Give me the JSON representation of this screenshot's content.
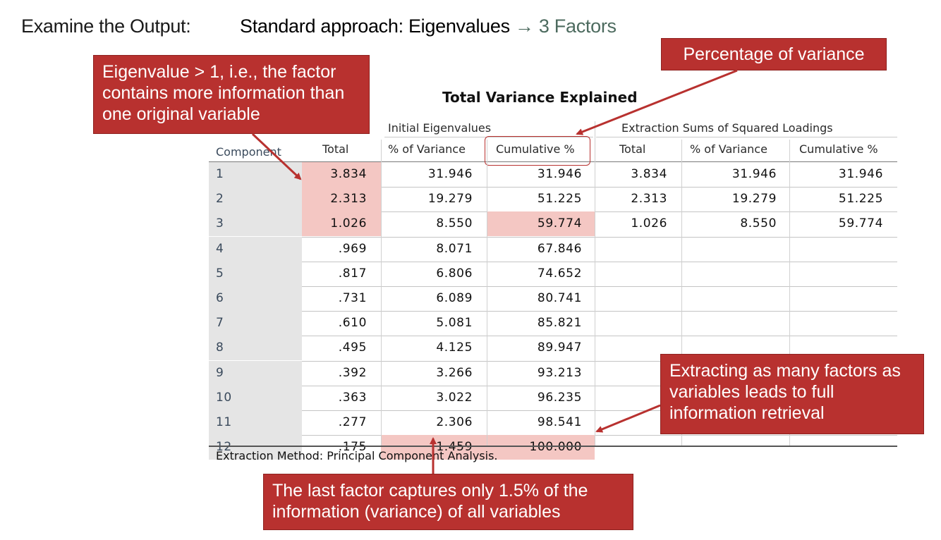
{
  "header": {
    "left_label": "Examine the Output:",
    "main_prefix": "Standard approach: Eigenvalues",
    "arrow": "→",
    "main_accent": "3 Factors"
  },
  "callouts": {
    "eigenvalue": "Eigenvalue > 1, i.e., the factor contains more information than one original variable",
    "percentage": "Percentage of variance",
    "extracting": "Extracting as many factors as variables leads to full information retrieval",
    "last_factor": "The last factor captures only 1.5% of the information (variance) of all variables"
  },
  "table": {
    "title": "Total Variance Explained",
    "group_initial": "Initial Eigenvalues",
    "group_extraction": "Extraction Sums of Squared Loadings",
    "columns": [
      "Component",
      "Total",
      "% of Variance",
      "Cumulative %",
      "Total",
      "% of Variance",
      "Cumulative %"
    ],
    "rows": [
      [
        "1",
        "3.834",
        "31.946",
        "31.946",
        "3.834",
        "31.946",
        "31.946"
      ],
      [
        "2",
        "2.313",
        "19.279",
        "51.225",
        "2.313",
        "19.279",
        "51.225"
      ],
      [
        "3",
        "1.026",
        "8.550",
        "59.774",
        "1.026",
        "8.550",
        "59.774"
      ],
      [
        "4",
        ".969",
        "8.071",
        "67.846",
        "",
        "",
        ""
      ],
      [
        "5",
        ".817",
        "6.806",
        "74.652",
        "",
        "",
        ""
      ],
      [
        "6",
        ".731",
        "6.089",
        "80.741",
        "",
        "",
        ""
      ],
      [
        "7",
        ".610",
        "5.081",
        "85.821",
        "",
        "",
        ""
      ],
      [
        "8",
        ".495",
        "4.125",
        "89.947",
        "",
        "",
        ""
      ],
      [
        "9",
        ".392",
        "3.266",
        "93.213",
        "",
        "",
        ""
      ],
      [
        "10",
        ".363",
        "3.022",
        "96.235",
        "",
        "",
        ""
      ],
      [
        "11",
        ".277",
        "2.306",
        "98.541",
        "",
        "",
        ""
      ],
      [
        "12",
        ".175",
        "1.459",
        "100.000",
        "",
        "",
        ""
      ]
    ],
    "footnote": "Extraction Method: Principal Component Analysis."
  },
  "colors": {
    "callout_red": "#b8312f",
    "highlight_pink": "#f4c7c3",
    "accent_green": "#4d6b5f",
    "component_shade": "#e5e5e5"
  }
}
